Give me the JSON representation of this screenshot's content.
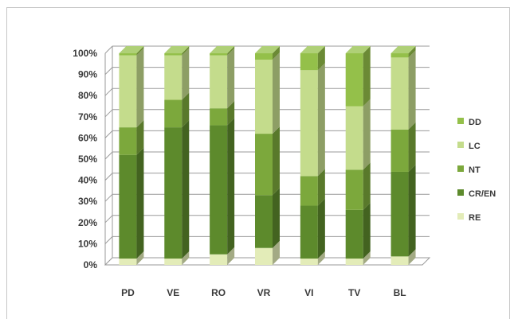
{
  "chart_data": {
    "type": "bar",
    "stacked": true,
    "normalized": true,
    "title": "",
    "xlabel": "",
    "ylabel": "",
    "ylim": [
      0,
      100
    ],
    "y_ticks": [
      "0%",
      "10%",
      "20%",
      "30%",
      "40%",
      "50%",
      "60%",
      "70%",
      "80%",
      "90%",
      "100%"
    ],
    "categories": [
      "PD",
      "VE",
      "RO",
      "VR",
      "VI",
      "TV",
      "BL"
    ],
    "series": [
      {
        "name": "RE",
        "color": "#e3ecb8",
        "values": [
          3,
          3,
          5,
          8,
          3,
          3,
          4
        ]
      },
      {
        "name": "CR/EN",
        "color": "#5d8a2c",
        "values": [
          49,
          62,
          61,
          25,
          25,
          23,
          40
        ]
      },
      {
        "name": "NT",
        "color": "#7ca83c",
        "values": [
          13,
          13,
          8,
          29,
          14,
          19,
          20
        ]
      },
      {
        "name": "LC",
        "color": "#c4dc8c",
        "values": [
          34,
          21,
          25,
          35,
          50,
          30,
          34
        ]
      },
      {
        "name": "DD",
        "color": "#94c04a",
        "values": [
          1,
          1,
          1,
          3,
          8,
          25,
          2
        ]
      }
    ],
    "legend_position": "right",
    "grid": true,
    "style": "3d-columns"
  }
}
